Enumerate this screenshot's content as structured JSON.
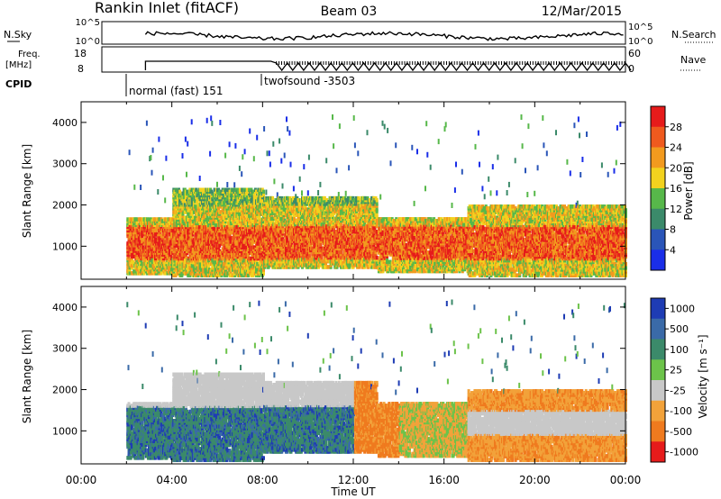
{
  "header": {
    "station": "Rankin Inlet (fitACF)",
    "beam": "Beam 03",
    "date": "12/Mar/2015"
  },
  "sky_panel": {
    "left_label": "N.Sky",
    "right_label": "N.Search",
    "ticks": [
      "10^5",
      "10^0"
    ]
  },
  "freq_panel": {
    "left_label_1": "Freq.",
    "left_label_2": "[MHz]",
    "left_ticks": [
      "18",
      "8"
    ],
    "right_label": "Nave",
    "right_ticks": [
      "60",
      "0"
    ]
  },
  "cpid": {
    "label": "CPID",
    "modes": [
      {
        "name": "normal (fast) 151",
        "start_hour": 2.0
      },
      {
        "name": "twofsound -3503",
        "start_hour": 8.0
      }
    ]
  },
  "colors": {
    "power": [
      "#1a2ee8",
      "#2a55b8",
      "#3b8a6a",
      "#57b84a",
      "#f2d21e",
      "#f29a1e",
      "#ef5a1e",
      "#e61b1b"
    ],
    "velocity": [
      "#1e3cb4",
      "#3a6aa8",
      "#3b8a6a",
      "#6cc34a",
      "#c8c8c8",
      "#f2a23a",
      "#ef7a1e",
      "#e61b1b"
    ]
  },
  "chart_data": [
    {
      "type": "heatmap",
      "name": "power",
      "ylabel": "Slant Range [km]",
      "yticks": [
        1000,
        2000,
        3000,
        4000
      ],
      "ylim": [
        200,
        4500
      ],
      "xlim": [
        0,
        24
      ],
      "colorbar": {
        "label": "Power [dB]",
        "ticks": [
          "4",
          "8",
          "12",
          "16",
          "20",
          "24",
          "28"
        ],
        "range": [
          0,
          32
        ]
      }
    },
    {
      "type": "heatmap",
      "name": "velocity",
      "ylabel": "Slant Range [km]",
      "yticks": [
        1000,
        2000,
        3000,
        4000
      ],
      "ylim": [
        200,
        4500
      ],
      "xlim": [
        0,
        24
      ],
      "xlabel": "Time UT",
      "xticks": [
        "00:00",
        "04:00",
        "08:00",
        "12:00",
        "16:00",
        "20:00",
        "00:00"
      ],
      "colorbar": {
        "label": "Velocity [m s⁻¹]",
        "ticks": [
          "1000",
          "500",
          "100",
          "25",
          "-25",
          "-100",
          "-500",
          "-1000"
        ]
      }
    }
  ]
}
